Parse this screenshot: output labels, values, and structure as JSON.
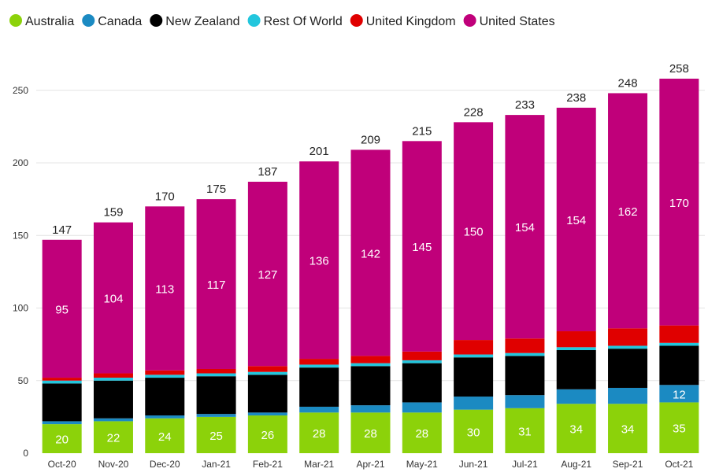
{
  "chart_data": {
    "type": "bar",
    "stacked": true,
    "title": "",
    "xlabel": "",
    "ylabel": "",
    "ylim": [
      0,
      260
    ],
    "yticks": [
      0,
      50,
      100,
      150,
      200,
      250
    ],
    "grid": true,
    "legend_position": "top-left",
    "categories": [
      "Oct-20",
      "Nov-20",
      "Dec-20",
      "Jan-21",
      "Feb-21",
      "Mar-21",
      "Apr-21",
      "May-21",
      "Jun-21",
      "Jul-21",
      "Aug-21",
      "Sep-21",
      "Oct-21"
    ],
    "series": [
      {
        "name": "Australia",
        "color": "#8cd20a",
        "values": [
          20,
          22,
          24,
          25,
          26,
          28,
          28,
          28,
          30,
          31,
          34,
          34,
          35
        ]
      },
      {
        "name": "Canada",
        "color": "#1b8ac2",
        "values": [
          2,
          2,
          2,
          2,
          2,
          4,
          5,
          7,
          9,
          9,
          10,
          11,
          12
        ]
      },
      {
        "name": "New Zealand",
        "color": "#000000",
        "values": [
          26,
          26,
          26,
          26,
          26,
          27,
          27,
          27,
          27,
          27,
          27,
          27,
          27
        ]
      },
      {
        "name": "Rest Of World",
        "color": "#22c6dd",
        "values": [
          2,
          2,
          2,
          2,
          2,
          2,
          2,
          2,
          2,
          2,
          2,
          2,
          2
        ]
      },
      {
        "name": "United Kingdom",
        "color": "#e00000",
        "values": [
          2,
          3,
          3,
          3,
          4,
          4,
          5,
          6,
          10,
          10,
          11,
          12,
          12
        ]
      },
      {
        "name": "United States",
        "color": "#c0007a",
        "values": [
          95,
          104,
          113,
          117,
          127,
          136,
          142,
          145,
          150,
          154,
          154,
          162,
          170
        ]
      }
    ],
    "totals": [
      147,
      159,
      170,
      175,
      187,
      201,
      209,
      215,
      228,
      233,
      238,
      248,
      258
    ],
    "labeled_series": {
      "Australia": [
        20,
        22,
        24,
        25,
        26,
        28,
        28,
        28,
        30,
        31,
        34,
        34,
        35
      ],
      "United States": [
        95,
        104,
        113,
        117,
        127,
        136,
        142,
        145,
        150,
        154,
        154,
        162,
        170
      ],
      "Canada": [
        null,
        null,
        null,
        null,
        null,
        null,
        null,
        null,
        null,
        null,
        null,
        null,
        12
      ]
    }
  }
}
